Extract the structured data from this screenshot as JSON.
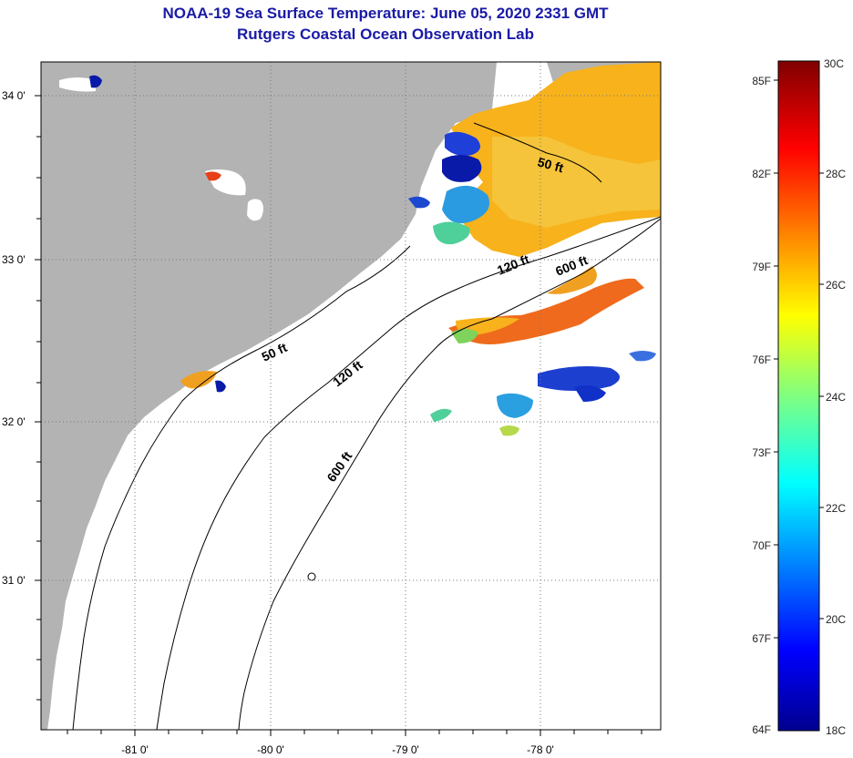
{
  "title": "NOAA-19 Sea Surface Temperature:  June 05, 2020 2331 GMT",
  "subtitle": "Rutgers Coastal Ocean Observation Lab",
  "map": {
    "lat_labels": [
      "34 0'",
      "33 0'",
      "32 0'",
      "31 0'"
    ],
    "lon_labels": [
      "-81 0'",
      "-80 0'",
      "-79 0'",
      "-78 0'"
    ],
    "contour_labels": [
      "50 ft",
      "120 ft",
      "600 ft",
      "50 ft",
      "120 ft",
      "600 ft"
    ],
    "land_color": "#b3b3b3",
    "ocean_color": "#ffffff"
  },
  "colorbar": {
    "fahrenheit_labels": [
      "85F",
      "82F",
      "79F",
      "76F",
      "73F",
      "70F",
      "67F",
      "64F"
    ],
    "celsius_labels": [
      "30C",
      "28C",
      "26C",
      "24C",
      "22C",
      "20C",
      "18C"
    ]
  }
}
